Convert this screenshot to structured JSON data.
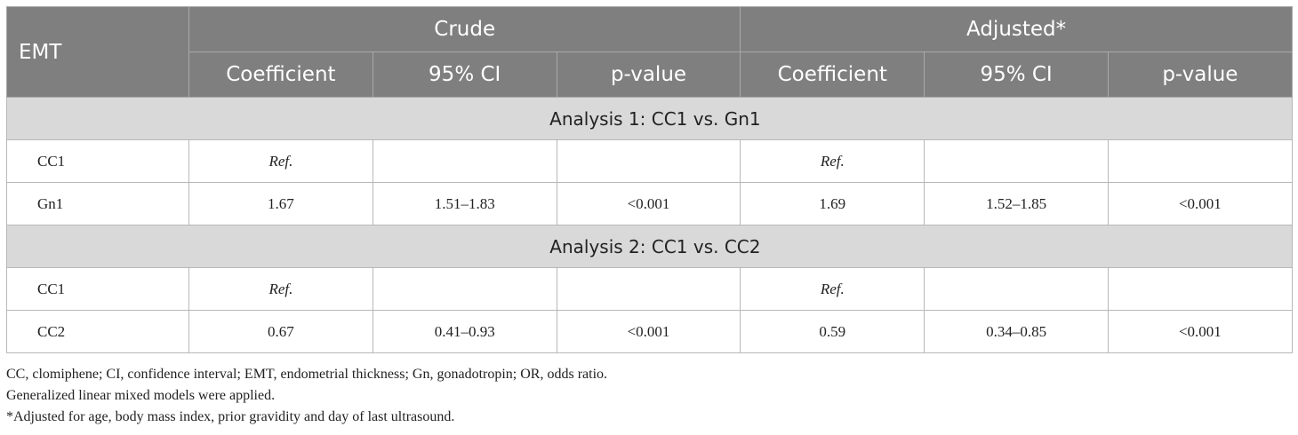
{
  "header": {
    "row_label": "EMT",
    "groups": [
      "Crude",
      "Adjusted*"
    ],
    "subcolumns": [
      "Coefficient",
      "95% CI",
      "p-value",
      "Coefficient",
      "95% CI",
      "p-value"
    ]
  },
  "sections": [
    {
      "title": "Analysis 1: CC1 vs. Gn1",
      "rows": [
        {
          "label": "CC1",
          "cells": [
            "Ref.",
            "",
            "",
            "Ref.",
            "",
            ""
          ]
        },
        {
          "label": "Gn1",
          "cells": [
            "1.67",
            "1.51–1.83",
            "<0.001",
            "1.69",
            "1.52–1.85",
            "<0.001"
          ]
        }
      ]
    },
    {
      "title": "Analysis 2: CC1 vs. CC2",
      "rows": [
        {
          "label": "CC1",
          "cells": [
            "Ref.",
            "",
            "",
            "Ref.",
            "",
            ""
          ]
        },
        {
          "label": "CC2",
          "cells": [
            "0.67",
            "0.41–0.93",
            "<0.001",
            "0.59",
            "0.34–0.85",
            "<0.001"
          ]
        }
      ]
    }
  ],
  "footnotes": [
    "CC, clomiphene; CI, confidence interval; EMT, endometrial thickness; Gn, gonadotropin; OR, odds ratio.",
    "Generalized linear mixed models were applied.",
    "*Adjusted for age, body mass index, prior gravidity and day of last ultrasound."
  ]
}
